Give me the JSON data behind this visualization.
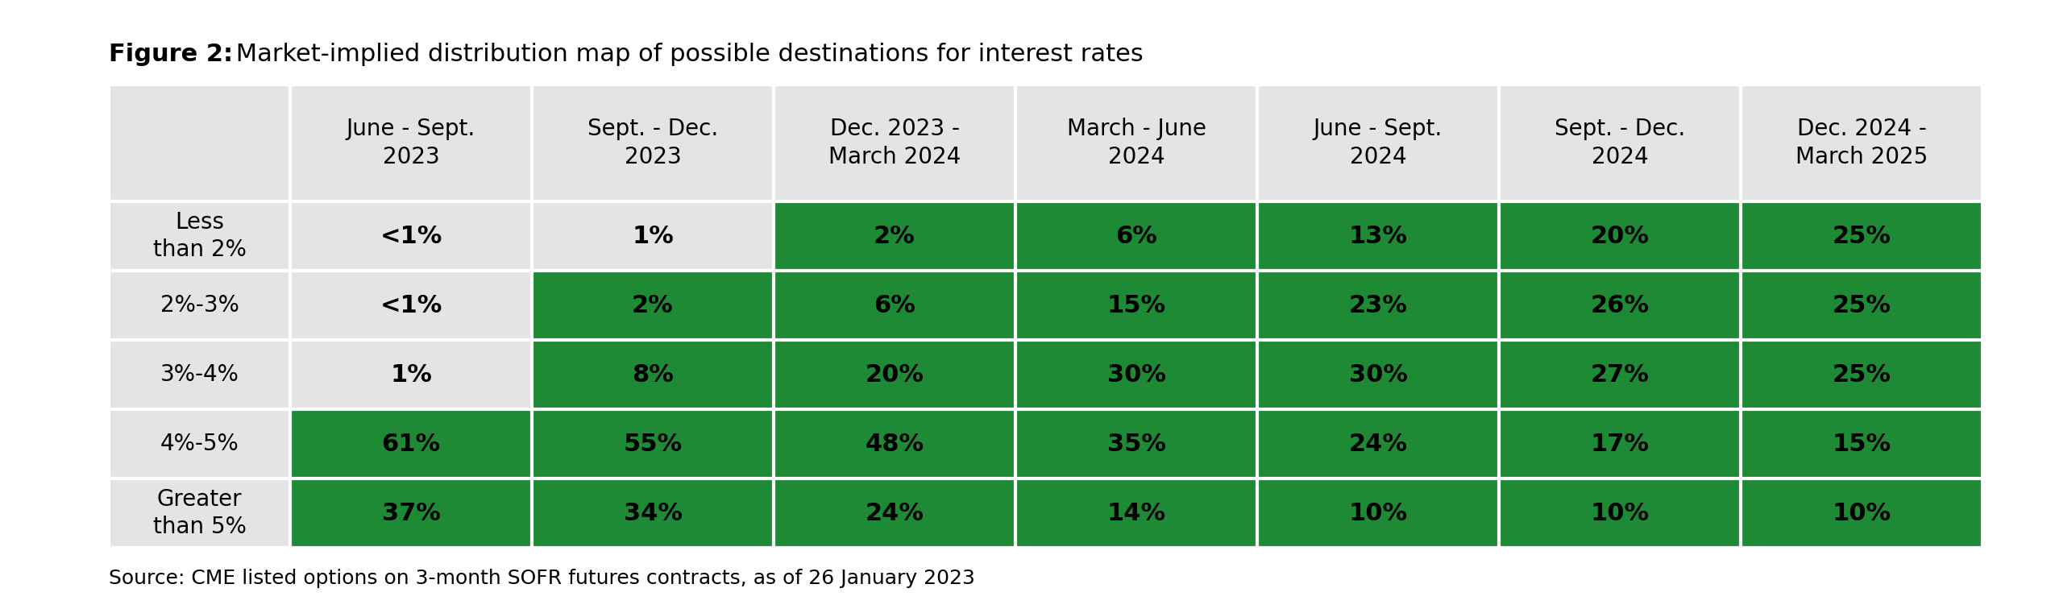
{
  "title_bold": "Figure 2:",
  "title_normal": " Market-implied distribution map of possible destinations for interest rates",
  "source": "Source: CME listed options on 3-month SOFR futures contracts, as of 26 January 2023",
  "col_headers": [
    "June - Sept.\n2023",
    "Sept. - Dec.\n2023",
    "Dec. 2023 -\nMarch 2024",
    "March - June\n2024",
    "June - Sept.\n2024",
    "Sept. - Dec.\n2024",
    "Dec. 2024 -\nMarch 2025"
  ],
  "row_headers": [
    "Less\nthan 2%",
    "2%-3%",
    "3%-4%",
    "4%-5%",
    "Greater\nthan 5%"
  ],
  "cell_values": [
    [
      "<1%",
      "1%",
      "2%",
      "6%",
      "13%",
      "20%",
      "25%"
    ],
    [
      "<1%",
      "2%",
      "6%",
      "15%",
      "23%",
      "26%",
      "25%"
    ],
    [
      "1%",
      "8%",
      "20%",
      "30%",
      "30%",
      "27%",
      "25%"
    ],
    [
      "61%",
      "55%",
      "48%",
      "35%",
      "24%",
      "17%",
      "15%"
    ],
    [
      "37%",
      "34%",
      "24%",
      "14%",
      "10%",
      "10%",
      "10%"
    ]
  ],
  "cell_colors": [
    [
      "#e4e4e4",
      "#e4e4e4",
      "#1e8a35",
      "#1e8a35",
      "#1e8a35",
      "#1e8a35",
      "#1e8a35"
    ],
    [
      "#e4e4e4",
      "#1e8a35",
      "#1e8a35",
      "#1e8a35",
      "#1e8a35",
      "#1e8a35",
      "#1e8a35"
    ],
    [
      "#e4e4e4",
      "#1e8a35",
      "#1e8a35",
      "#1e8a35",
      "#1e8a35",
      "#1e8a35",
      "#1e8a35"
    ],
    [
      "#1e8a35",
      "#1e8a35",
      "#1e8a35",
      "#1e8a35",
      "#1e8a35",
      "#1e8a35",
      "#1e8a35"
    ],
    [
      "#1e8a35",
      "#1e8a35",
      "#1e8a35",
      "#1e8a35",
      "#1e8a35",
      "#1e8a35",
      "#1e8a35"
    ]
  ],
  "header_bg": "#e4e4e4",
  "row_header_bg": "#e4e4e4",
  "fig_bg": "#ffffff",
  "n_rows": 5,
  "n_cols": 7,
  "cell_fontsize": 22,
  "header_fontsize": 20,
  "row_header_fontsize": 20,
  "title_fontsize": 22,
  "source_fontsize": 18
}
